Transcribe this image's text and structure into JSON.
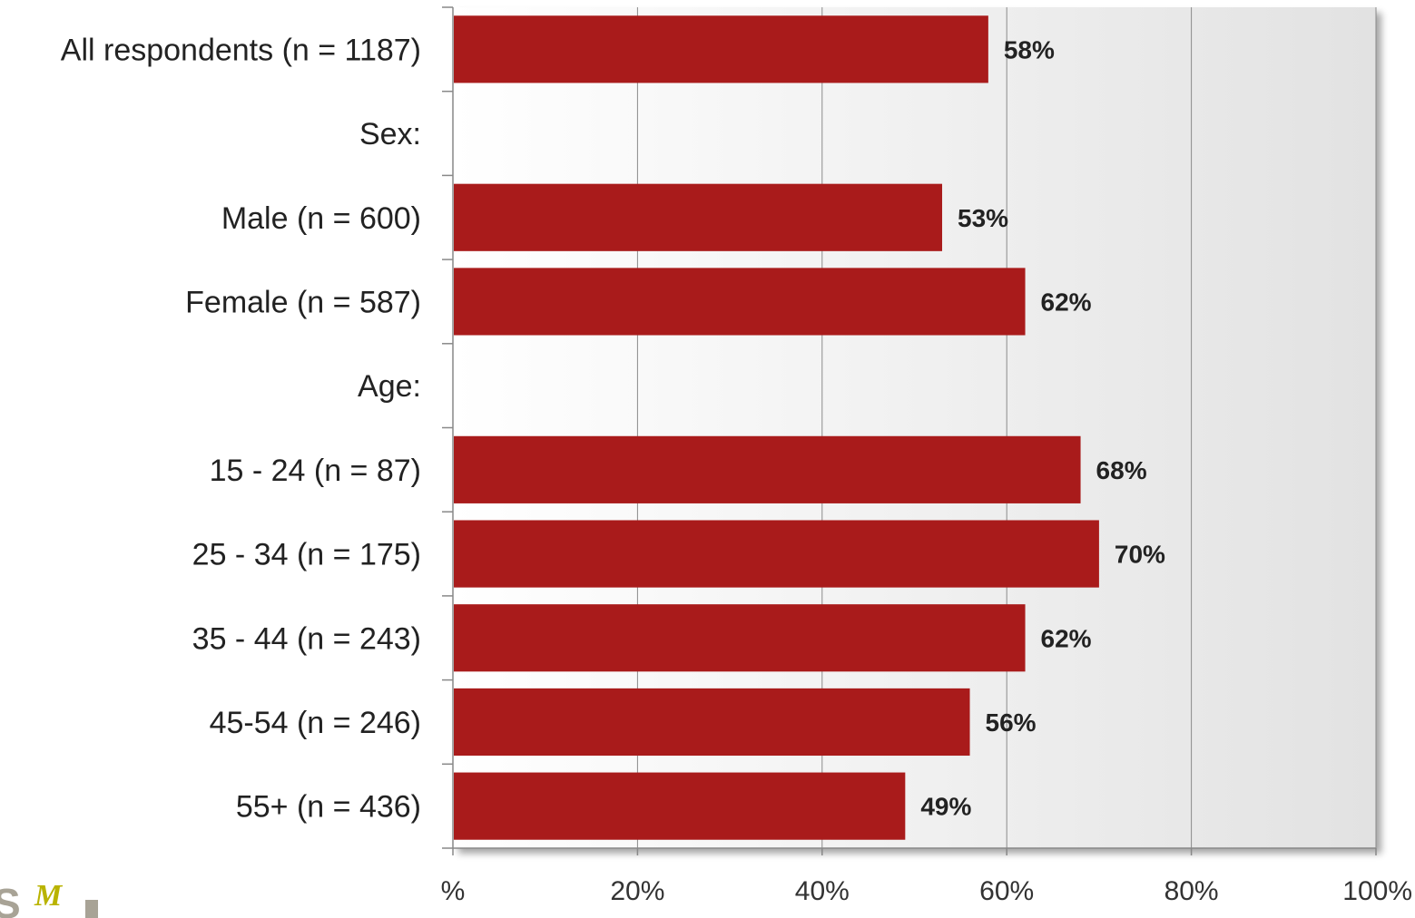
{
  "chart_data": {
    "type": "bar",
    "orientation": "horizontal",
    "categories": [
      "All respondents (n = 1187)",
      "Sex:",
      "Male (n = 600)",
      "Female (n = 587)",
      "Age:",
      "15 - 24 (n = 87)",
      "25 - 34 (n = 175)",
      "35 - 44 (n = 243)",
      "45-54 (n = 246)",
      "55+ (n = 436)"
    ],
    "values": [
      58,
      null,
      53,
      62,
      null,
      68,
      70,
      62,
      56,
      49
    ],
    "value_labels": [
      "58%",
      "",
      "53%",
      "62%",
      "",
      "68%",
      "70%",
      "62%",
      "56%",
      "49%"
    ],
    "xlim": [
      0,
      100
    ],
    "x_ticks": [
      0,
      20,
      40,
      60,
      80,
      100
    ],
    "x_tick_labels": [
      "%",
      "20%",
      "40%",
      "60%",
      "80%",
      "100%"
    ],
    "grid": true,
    "legend": "none",
    "colors": {
      "bar": "#a91b1b",
      "plot_background_start": "#ffffff",
      "plot_background_end": "#e2e2e2",
      "gridline": "#8a8a8a",
      "axis": "#888888"
    }
  },
  "logo": {
    "text": "S",
    "accent": "M"
  }
}
